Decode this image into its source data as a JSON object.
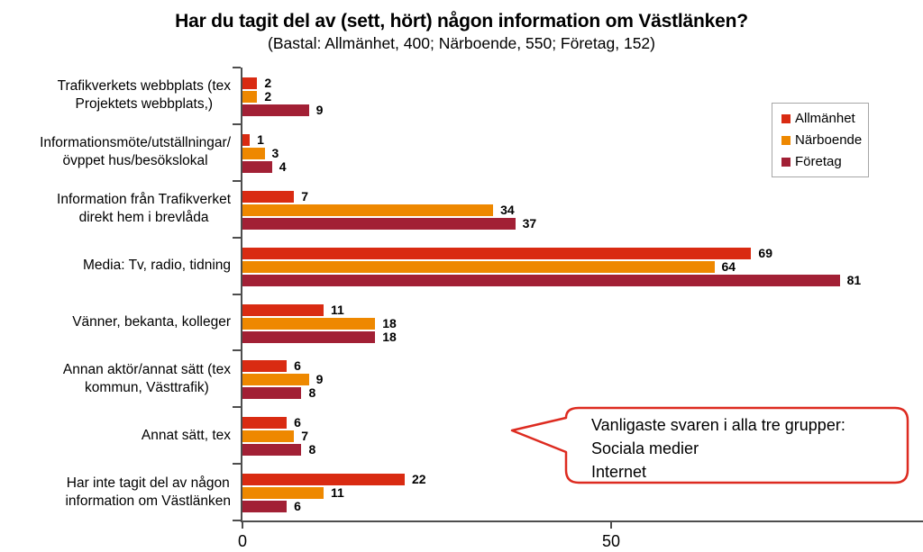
{
  "title": "Har du tagit del av (sett, hört) någon information om Västlänken?",
  "subtitle": "(Bastal: Allmänhet, 400; Närboende, 550; Företag, 152)",
  "chart_data": {
    "type": "bar",
    "orientation": "horizontal",
    "title": "Har du tagit del av (sett, hört) någon information om Västlänken?",
    "subtitle": "(Bastal: Allmänhet, 400; Närboende, 550; Företag, 152)",
    "categories": [
      "Trafikverkets webbplats (tex\nProjektets webbplats,)",
      "Informationsmöte/utställningar/\növppet hus/besökslokal",
      "Information från Trafikverket\ndirekt hem i brevlåda",
      "Media: Tv, radio, tidning",
      "Vänner, bekanta, kolleger",
      "Annan aktör/annat sätt (tex\nkommun, Västtrafik)",
      "Annat sätt, tex",
      "Har inte tagit del av någon\ninformation om Västlänken"
    ],
    "series": [
      {
        "name": "Allmänhet",
        "color": "#d92b12",
        "values": [
          2,
          1,
          7,
          69,
          11,
          6,
          6,
          22
        ]
      },
      {
        "name": "Närboende",
        "color": "#ee8800",
        "values": [
          2,
          3,
          34,
          64,
          18,
          9,
          7,
          11
        ]
      },
      {
        "name": "Företag",
        "color": "#a22035",
        "values": [
          9,
          4,
          37,
          81,
          18,
          8,
          8,
          6
        ]
      }
    ],
    "xlim": [
      0,
      92.3
    ],
    "x_ticks": [
      0,
      50
    ],
    "x_tick_labels": [
      "0",
      "50"
    ],
    "value_labels": true,
    "grid": false,
    "legend_position": "top-right"
  },
  "legend": {
    "items": [
      {
        "label": "Allmänhet",
        "color": "#d92b12"
      },
      {
        "label": "Närboende",
        "color": "#ee8800"
      },
      {
        "label": "Företag",
        "color": "#a22035"
      }
    ]
  },
  "callout": {
    "lines": [
      "Vanligaste svaren i alla tre grupper:",
      "Sociala medier",
      "Internet"
    ],
    "border_color": "#dd2b20"
  },
  "axis_color": "#4d4d4d"
}
